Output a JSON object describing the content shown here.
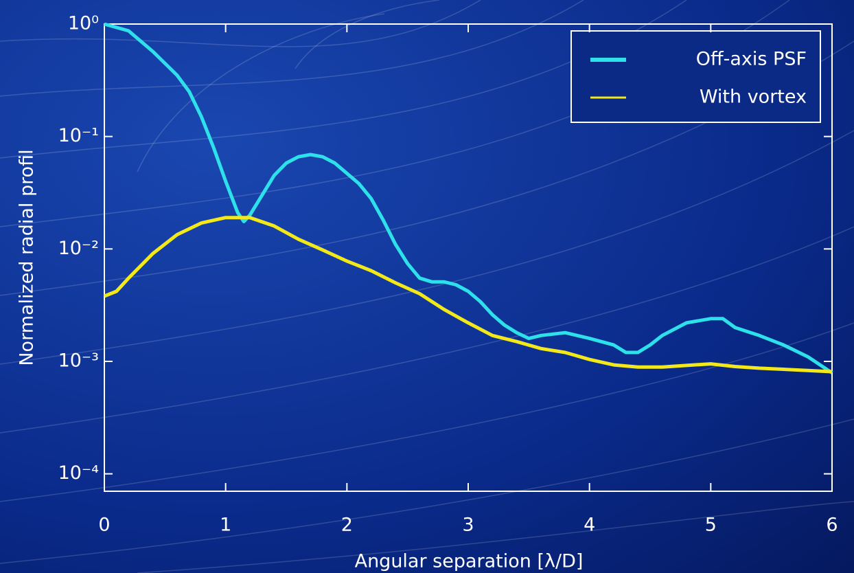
{
  "chart_data": {
    "type": "line",
    "xlabel": "Angular separation [λ/D]",
    "ylabel": "Normalized radial profil",
    "xlim": [
      0,
      6
    ],
    "xticks": [
      0,
      1,
      2,
      3,
      4,
      5,
      6
    ],
    "ylim": [
      7e-05,
      1
    ],
    "log_y": true,
    "yticks": [
      {
        "value": 1,
        "label": "10⁰"
      },
      {
        "value": 0.1,
        "label": "10⁻¹"
      },
      {
        "value": 0.01,
        "label": "10⁻²"
      },
      {
        "value": 0.001,
        "label": "10⁻³"
      },
      {
        "value": 0.0001,
        "label": "10⁻⁴"
      }
    ],
    "legend": "upper right",
    "series": [
      {
        "name": "Off-axis PSF",
        "color": "#2de0ea",
        "x": [
          0,
          0.2,
          0.4,
          0.6,
          0.7,
          0.8,
          0.9,
          1.0,
          1.1,
          1.15,
          1.2,
          1.3,
          1.4,
          1.5,
          1.6,
          1.7,
          1.8,
          1.9,
          2.0,
          2.1,
          2.2,
          2.3,
          2.4,
          2.5,
          2.6,
          2.7,
          2.8,
          2.9,
          3.0,
          3.1,
          3.2,
          3.3,
          3.4,
          3.5,
          3.6,
          3.8,
          4.0,
          4.2,
          4.3,
          4.4,
          4.5,
          4.6,
          4.8,
          5.0,
          5.1,
          5.2,
          5.4,
          5.6,
          5.8,
          6.0
        ],
        "values": [
          1.0,
          0.87,
          0.57,
          0.35,
          0.25,
          0.15,
          0.08,
          0.04,
          0.021,
          0.0175,
          0.02,
          0.03,
          0.045,
          0.058,
          0.066,
          0.069,
          0.066,
          0.058,
          0.047,
          0.038,
          0.028,
          0.018,
          0.011,
          0.0074,
          0.0055,
          0.0051,
          0.0051,
          0.0048,
          0.0042,
          0.0034,
          0.0026,
          0.0021,
          0.0018,
          0.0016,
          0.0017,
          0.0018,
          0.0016,
          0.0014,
          0.0012,
          0.0012,
          0.0014,
          0.0017,
          0.0022,
          0.0024,
          0.0024,
          0.002,
          0.0017,
          0.0014,
          0.0011,
          0.00079
        ]
      },
      {
        "name": "With vortex",
        "color": "#f2e81a",
        "x": [
          0,
          0.1,
          0.2,
          0.4,
          0.6,
          0.8,
          1.0,
          1.2,
          1.4,
          1.6,
          1.8,
          2.0,
          2.2,
          2.4,
          2.6,
          2.8,
          3.0,
          3.2,
          3.4,
          3.6,
          3.8,
          4.0,
          4.2,
          4.4,
          4.6,
          4.8,
          5.0,
          5.2,
          5.4,
          5.6,
          5.8,
          6.0
        ],
        "values": [
          0.0038,
          0.0042,
          0.0055,
          0.0091,
          0.0134,
          0.017,
          0.019,
          0.019,
          0.016,
          0.0122,
          0.0098,
          0.0078,
          0.0064,
          0.005,
          0.004,
          0.0029,
          0.0022,
          0.0017,
          0.0015,
          0.0013,
          0.0012,
          0.00104,
          0.00093,
          0.00089,
          0.00089,
          0.00092,
          0.00095,
          0.0009,
          0.00087,
          0.00085,
          0.00083,
          0.00081
        ]
      }
    ]
  }
}
